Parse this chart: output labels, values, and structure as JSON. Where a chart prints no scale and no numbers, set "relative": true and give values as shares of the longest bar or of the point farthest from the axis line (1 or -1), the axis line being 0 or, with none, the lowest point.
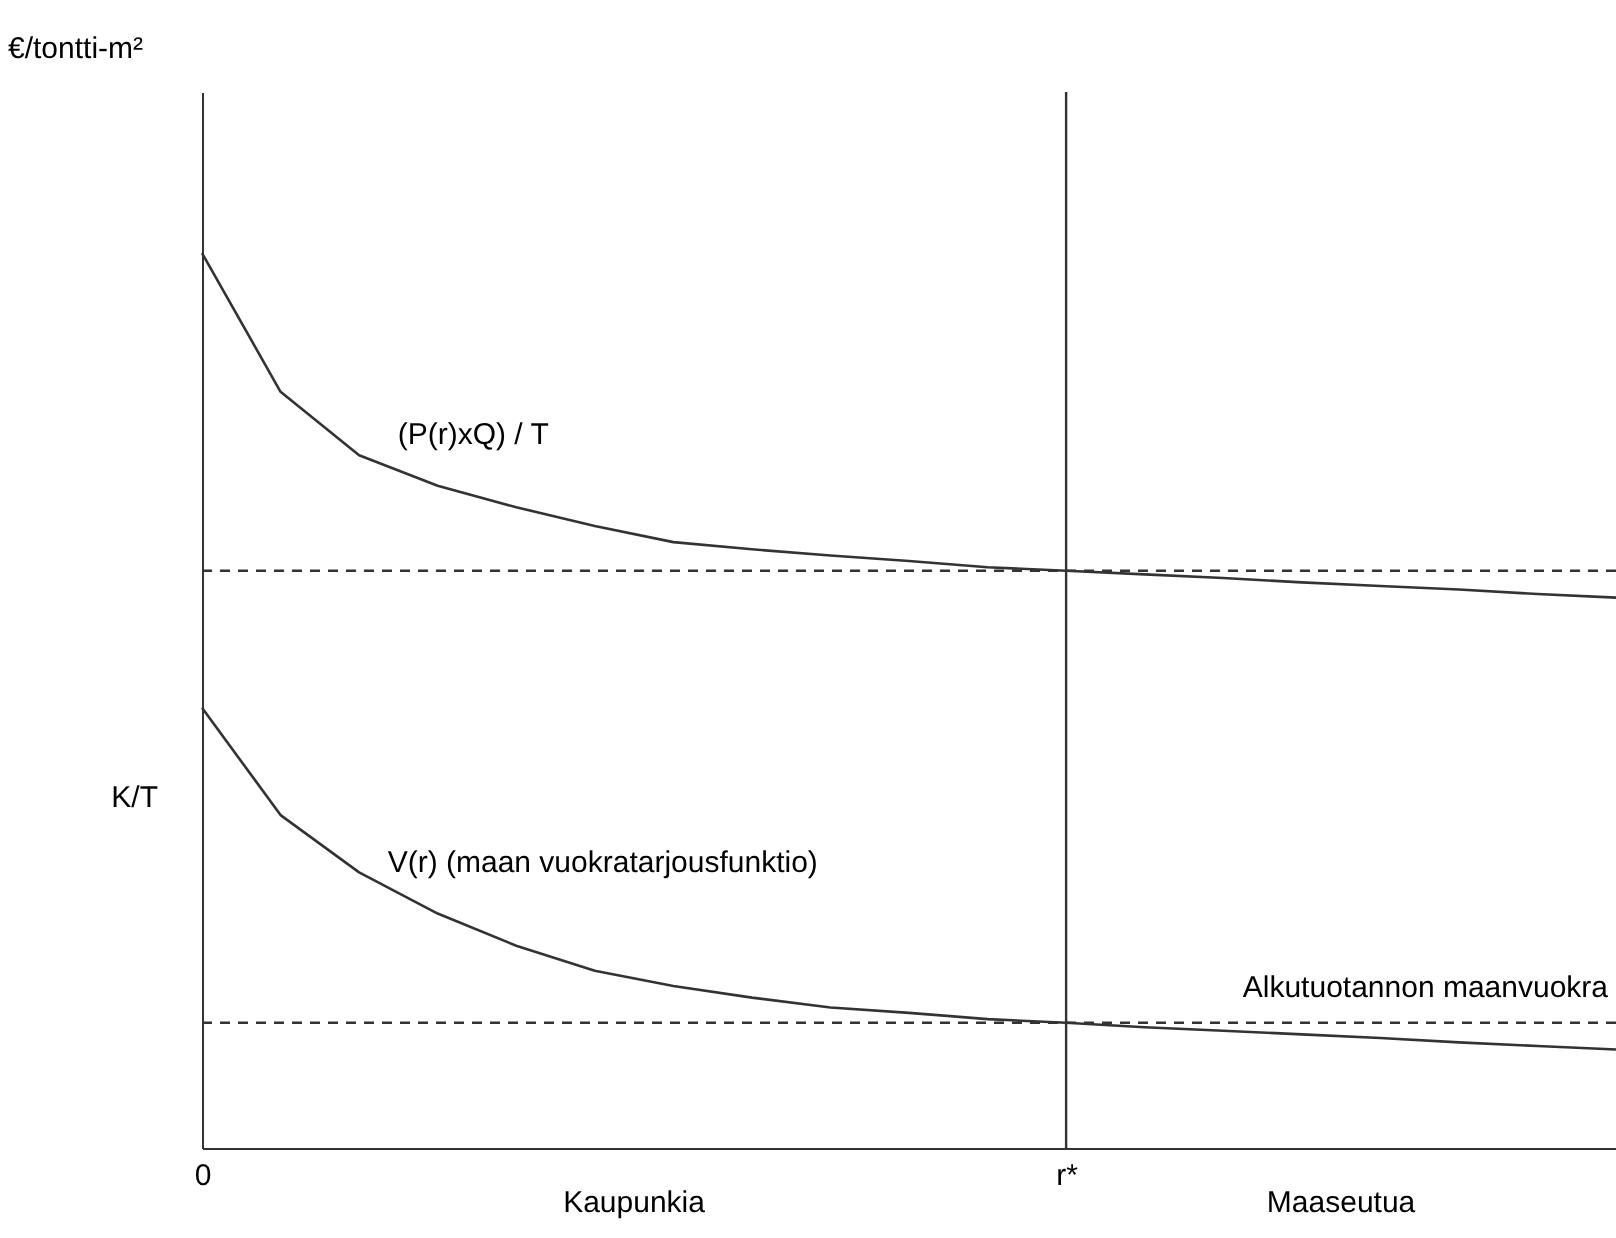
{
  "chart_data": {
    "type": "line",
    "relative": true,
    "tick_labels": "x",
    "grid": false,
    "legend": false,
    "categories": [
      "0",
      null,
      null,
      null,
      null,
      null,
      null,
      null,
      null,
      null,
      null,
      "r*",
      null,
      null,
      null,
      null,
      null,
      null,
      null
    ],
    "series": [
      {
        "name": "(P(r)xQ) / T",
        "color": "#333333",
        "values": [
          1.0,
          0.845,
          0.774,
          0.74,
          0.716,
          0.695,
          0.677,
          0.669,
          0.662,
          0.656,
          0.649,
          0.645,
          0.641,
          0.637,
          0.632,
          0.628,
          0.624,
          0.619,
          0.615
        ]
      },
      {
        "name": "V(r)  (maan vuokratarjousfunktio)",
        "color": "#333333",
        "values": [
          0.492,
          0.372,
          0.308,
          0.262,
          0.226,
          0.198,
          0.181,
          0.168,
          0.157,
          0.151,
          0.144,
          0.14,
          0.135,
          0.131,
          0.127,
          0.123,
          0.118,
          0.114,
          0.11
        ]
      }
    ],
    "ref_lines": [
      {
        "axis": "y",
        "value": 0.645,
        "line_style": "dashed",
        "color": "#333333"
      },
      {
        "axis": "y",
        "value": 0.14,
        "label": "Alkutuotannon maanvuokra",
        "line_style": "dashed",
        "color": "#333333"
      },
      {
        "axis": "x",
        "value": "r*",
        "line_style": "solid",
        "color": "#333333"
      }
    ],
    "annotations": [
      "€/tontti-m²",
      "K/T",
      "Kaupunkia",
      "Maaseutua"
    ]
  }
}
